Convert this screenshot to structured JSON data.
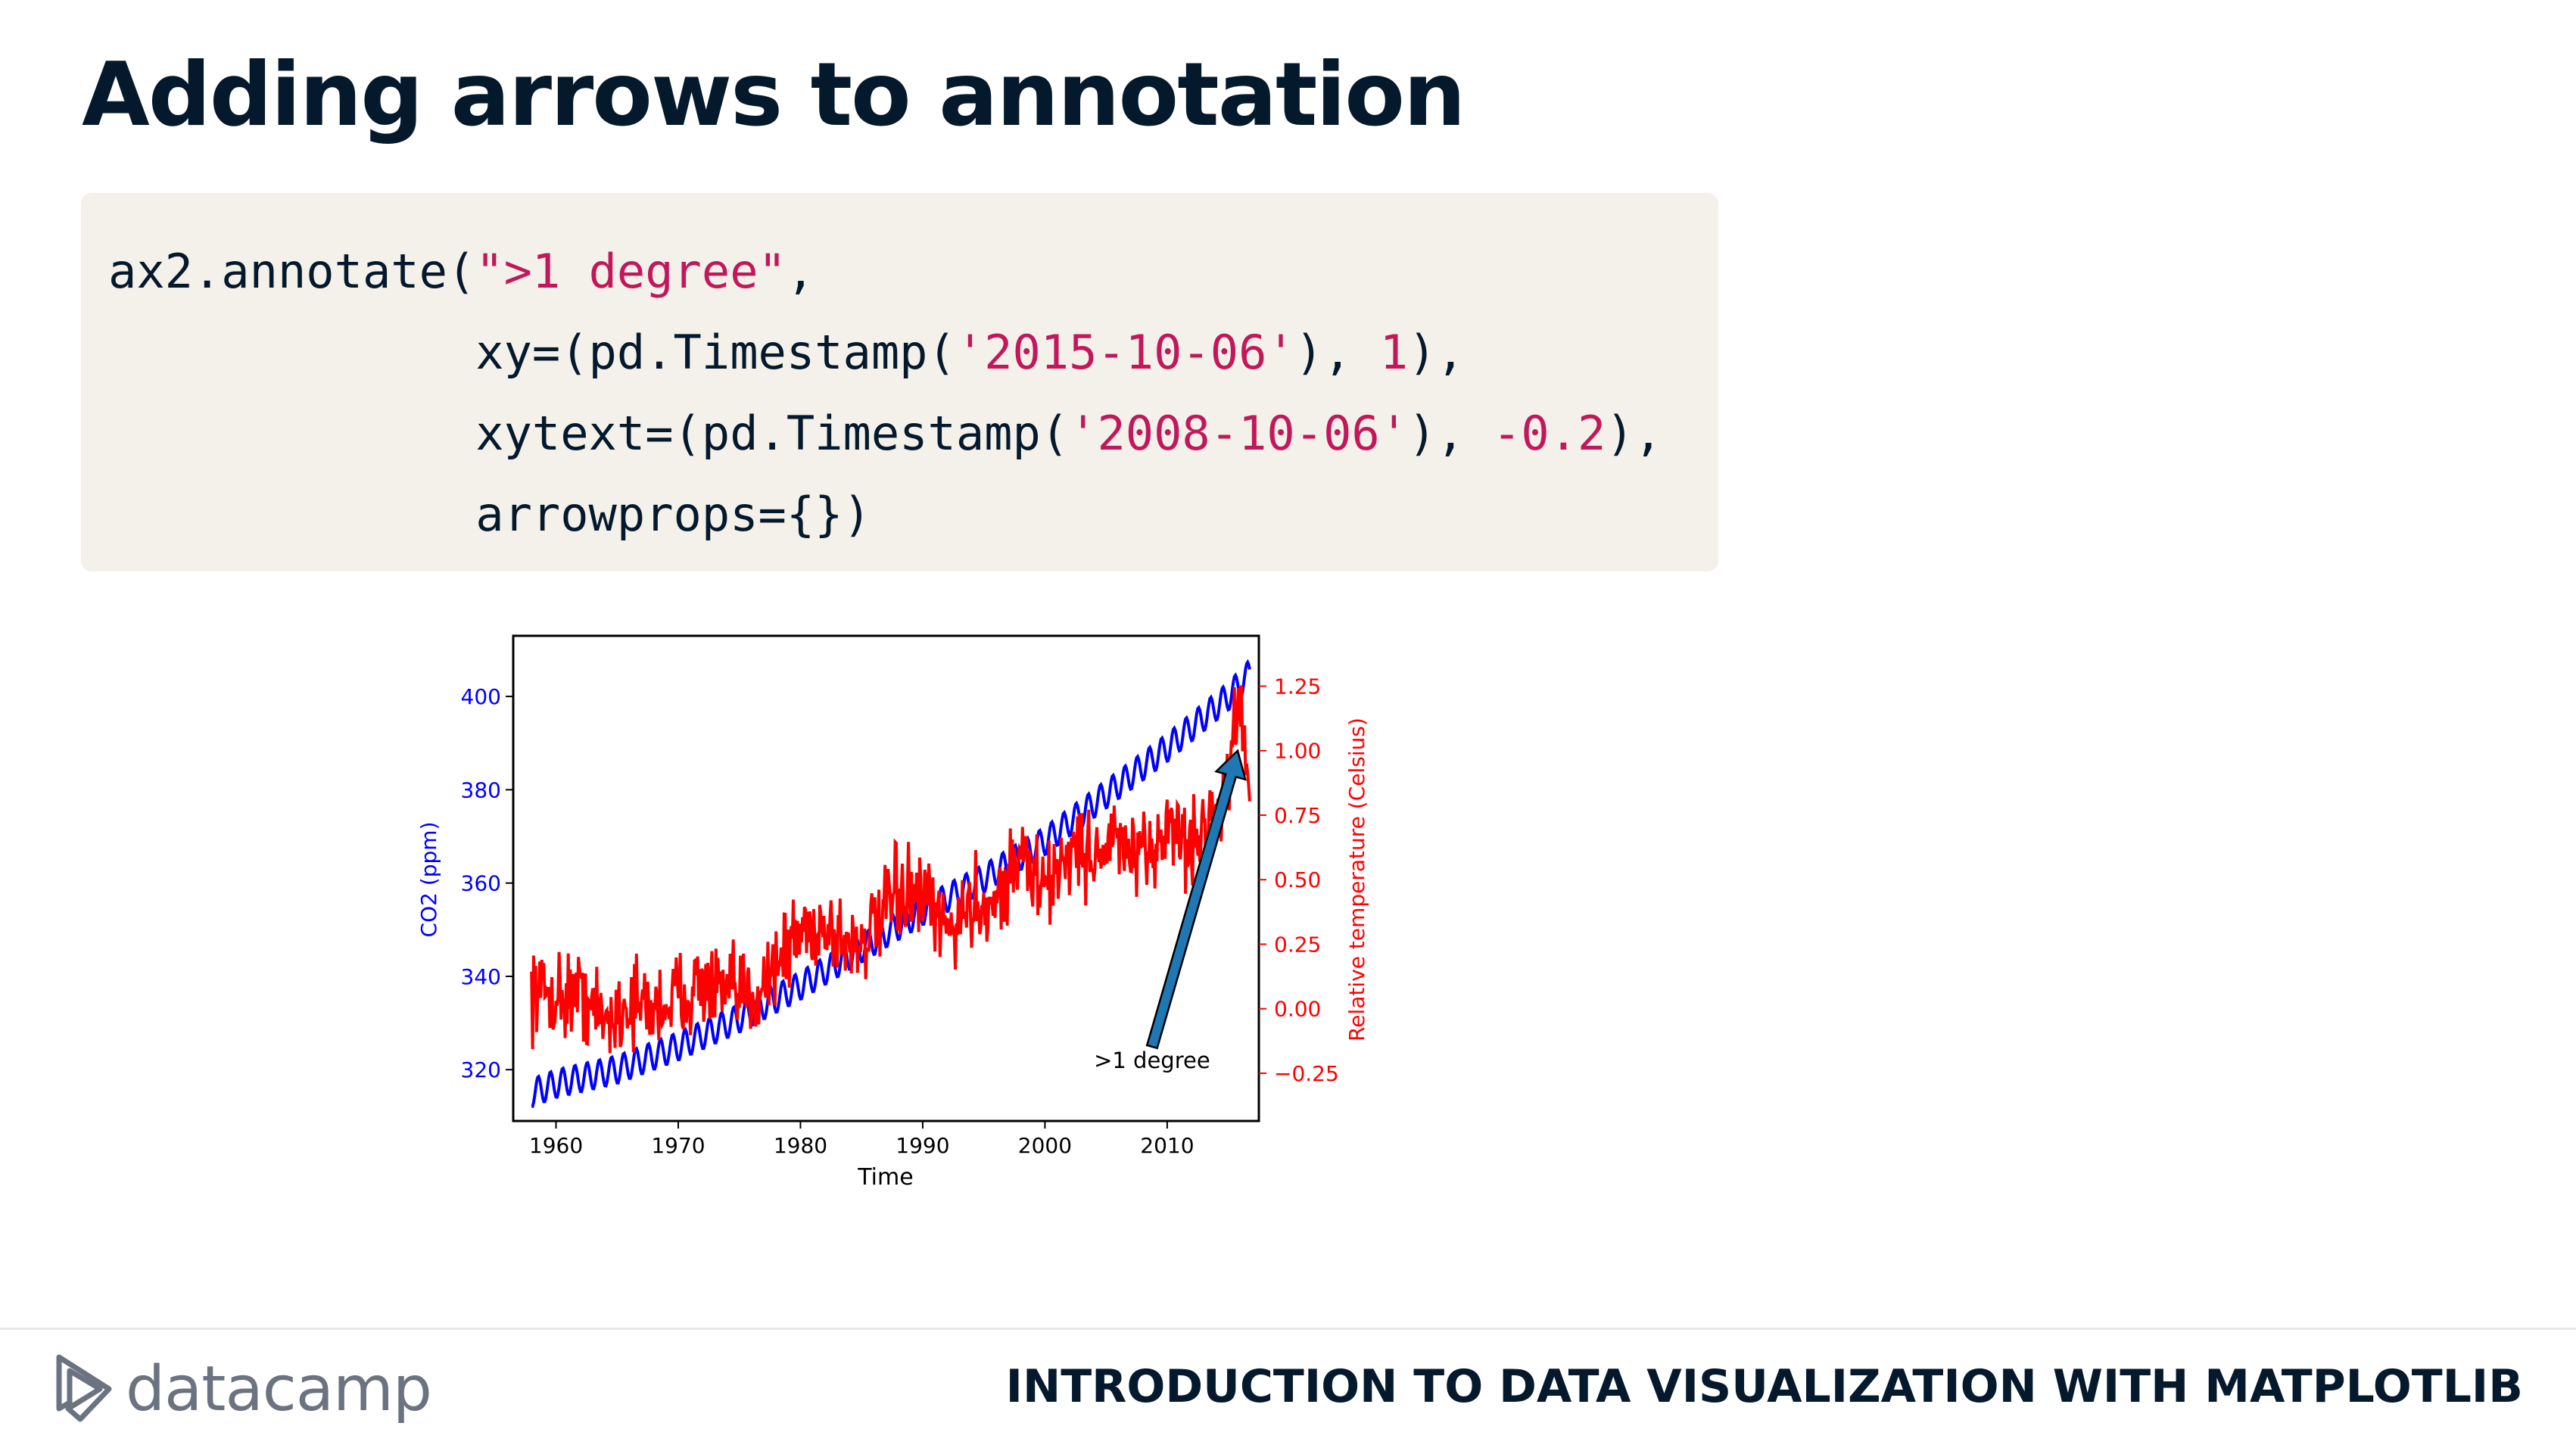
{
  "slide": {
    "title": "Adding arrows to annotation",
    "footer_title": "INTRODUCTION TO DATA VISUALIZATION WITH MATPLOTLIB",
    "logo_text": "datacamp",
    "logo_icon": "datacamp-logo-icon"
  },
  "code": {
    "lines": [
      [
        {
          "t": "ax2.annotate(",
          "c": "plain"
        },
        {
          "t": "\">1 degree\"",
          "c": "string"
        },
        {
          "t": ",",
          "c": "plain"
        }
      ],
      [
        {
          "t": "             xy=(pd.Timestamp(",
          "c": "plain"
        },
        {
          "t": "'2015-10-06'",
          "c": "string"
        },
        {
          "t": "), ",
          "c": "plain"
        },
        {
          "t": "1",
          "c": "number"
        },
        {
          "t": "),",
          "c": "plain"
        }
      ],
      [
        {
          "t": "             xytext=(pd.Timestamp(",
          "c": "plain"
        },
        {
          "t": "'2008-10-06'",
          "c": "string"
        },
        {
          "t": "), ",
          "c": "plain"
        },
        {
          "t": "-0.2",
          "c": "number"
        },
        {
          "t": "),",
          "c": "plain"
        }
      ],
      [
        {
          "t": "             arrowprops={})",
          "c": "plain"
        }
      ]
    ]
  },
  "colors": {
    "co2": "#0000ff",
    "temp": "#ff0000",
    "arrow": "#1f77b4",
    "title": "#05192d",
    "code_bg": "#f4f1ea"
  },
  "chart_data": {
    "type": "line",
    "xlabel": "Time",
    "ylabel_left": "CO2 (ppm)",
    "ylabel_right": "Relative temperature (Celsius)",
    "x_ticks": [
      "1960",
      "1970",
      "1980",
      "1990",
      "2000",
      "2010"
    ],
    "y_left_ticks": [
      "320",
      "340",
      "360",
      "380",
      "400"
    ],
    "y_right_ticks": [
      "−0.25",
      "0.00",
      "0.25",
      "0.50",
      "0.75",
      "1.00",
      "1.25"
    ],
    "xlim": [
      1956.5,
      2017.5
    ],
    "ylim_left": [
      309,
      413
    ],
    "ylim_right": [
      -0.435,
      1.445
    ],
    "series": [
      {
        "name": "CO2 (ppm)",
        "axis": "left",
        "color": "#0000ff",
        "x": [
          1958,
          1960,
          1965,
          1970,
          1975,
          1980,
          1985,
          1990,
          1995,
          2000,
          2005,
          2010,
          2015,
          2016.8
        ],
        "y": [
          315,
          317,
          320,
          325,
          331,
          338,
          346,
          354,
          361,
          369,
          379,
          389,
          400,
          405
        ],
        "seasonal_amplitude": 3
      },
      {
        "name": "Relative temperature (Celsius)",
        "axis": "right",
        "color": "#ff0000",
        "x": [
          1958,
          1960,
          1962,
          1964,
          1966,
          1968,
          1970,
          1972,
          1974,
          1976,
          1978,
          1980,
          1982,
          1984,
          1986,
          1988,
          1990,
          1992,
          1994,
          1996,
          1998,
          2000,
          2002,
          2004,
          2006,
          2008,
          2010,
          2012,
          2014,
          2015,
          2016,
          2016.8
        ],
        "y": [
          0.08,
          0.05,
          0.06,
          -0.05,
          0.02,
          0.0,
          0.05,
          0.1,
          0.05,
          0.05,
          0.18,
          0.3,
          0.32,
          0.25,
          0.3,
          0.45,
          0.42,
          0.3,
          0.4,
          0.42,
          0.6,
          0.45,
          0.62,
          0.6,
          0.65,
          0.55,
          0.72,
          0.62,
          0.78,
          0.9,
          1.2,
          0.85
        ],
        "noise": 0.12
      }
    ],
    "annotation": {
      "text": ">1 degree",
      "xy": [
        "2015-10-06",
        1
      ],
      "xytext": [
        "2008-10-06",
        -0.2
      ]
    }
  }
}
